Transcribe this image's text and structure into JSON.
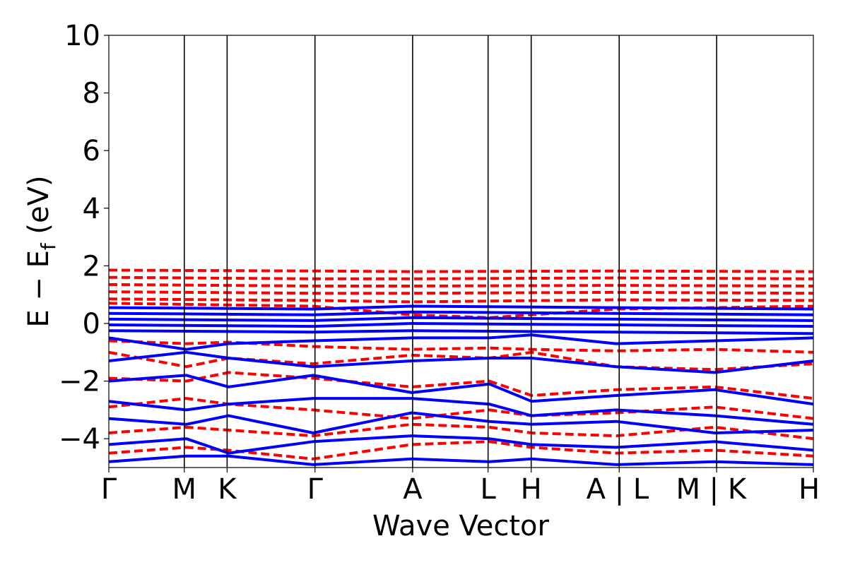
{
  "chart_data": {
    "type": "line",
    "xlabel": "Wave Vector",
    "ylabel_main": "E − E",
    "ylabel_sub": "f",
    "ylabel_unit": " (eV)",
    "ylim": [
      -5,
      10
    ],
    "yticks": [
      {
        "value": 10,
        "label": "10"
      },
      {
        "value": 8,
        "label": "8"
      },
      {
        "value": 6,
        "label": "6"
      },
      {
        "value": 4,
        "label": "4"
      },
      {
        "value": 2,
        "label": "2"
      },
      {
        "value": 0,
        "label": "0"
      },
      {
        "value": -2,
        "label": "−2"
      },
      {
        "value": -4,
        "label": "−4"
      }
    ],
    "xlim": [
      0,
      1
    ],
    "kpoints": [
      {
        "position": 0.0,
        "label": "Γ"
      },
      {
        "position": 0.1071,
        "label": "M"
      },
      {
        "position": 0.1679,
        "label": "K"
      },
      {
        "position": 0.2926,
        "label": "Γ"
      },
      {
        "position": 0.4312,
        "label": "A"
      },
      {
        "position": 0.5383,
        "label": "L"
      },
      {
        "position": 0.5995,
        "label": "H"
      },
      {
        "position": 0.7244,
        "label": "A | L"
      },
      {
        "position": 0.8627,
        "label": "M | K"
      },
      {
        "position": 1.0,
        "label": "H"
      }
    ],
    "grid": false,
    "series": [
      {
        "style": "dashed",
        "color": "#ff0000",
        "bands": [
          {
            "x": [
              0,
              0.29,
              0.43,
              0.72,
              1
            ],
            "y": [
              1.85,
              1.82,
              1.8,
              1.82,
              1.8
            ]
          },
          {
            "x": [
              0,
              0.29,
              0.43,
              0.72,
              1
            ],
            "y": [
              1.6,
              1.55,
              1.55,
              1.58,
              1.55
            ]
          },
          {
            "x": [
              0,
              0.29,
              0.43,
              0.72,
              1
            ],
            "y": [
              1.35,
              1.3,
              1.3,
              1.32,
              1.3
            ]
          },
          {
            "x": [
              0,
              0.29,
              0.43,
              0.72,
              1
            ],
            "y": [
              1.1,
              1.05,
              1.05,
              1.08,
              1.05
            ]
          },
          {
            "x": [
              0,
              0.29,
              0.43,
              0.72,
              1
            ],
            "y": [
              0.85,
              0.8,
              0.75,
              0.82,
              0.8
            ]
          },
          {
            "x": [
              0,
              0.29,
              0.43,
              0.54,
              0.72,
              1
            ],
            "y": [
              0.7,
              0.6,
              0.3,
              0.2,
              0.5,
              0.6
            ]
          },
          {
            "x": [
              0,
              0.11,
              0.17,
              0.29,
              0.43,
              0.54,
              0.6,
              0.72,
              0.86,
              1
            ],
            "y": [
              -0.6,
              -0.7,
              -0.65,
              -0.8,
              -0.9,
              -0.85,
              -0.9,
              -0.95,
              -0.9,
              -1.0
            ]
          },
          {
            "x": [
              0,
              0.11,
              0.17,
              0.29,
              0.43,
              0.54,
              0.6,
              0.72,
              0.86,
              1
            ],
            "y": [
              -1.0,
              -1.5,
              -1.2,
              -1.4,
              -1.1,
              -1.2,
              -1.0,
              -1.5,
              -1.6,
              -1.4
            ]
          },
          {
            "x": [
              0,
              0.11,
              0.17,
              0.29,
              0.43,
              0.54,
              0.6,
              0.72,
              0.86,
              1
            ],
            "y": [
              -1.9,
              -2.0,
              -1.7,
              -1.9,
              -2.2,
              -2.0,
              -2.5,
              -2.3,
              -2.2,
              -2.6
            ]
          },
          {
            "x": [
              0,
              0.11,
              0.17,
              0.29,
              0.43,
              0.54,
              0.6,
              0.72,
              0.86,
              1
            ],
            "y": [
              -2.9,
              -2.6,
              -2.8,
              -3.0,
              -3.3,
              -3.0,
              -3.2,
              -3.1,
              -2.9,
              -3.3
            ]
          },
          {
            "x": [
              0,
              0.11,
              0.17,
              0.29,
              0.43,
              0.54,
              0.6,
              0.72,
              0.86,
              1
            ],
            "y": [
              -3.8,
              -3.6,
              -3.7,
              -3.9,
              -3.5,
              -3.6,
              -3.8,
              -3.9,
              -3.6,
              -4.0
            ]
          },
          {
            "x": [
              0,
              0.11,
              0.17,
              0.29,
              0.43,
              0.54,
              0.6,
              0.72,
              0.86,
              1
            ],
            "y": [
              -4.5,
              -4.3,
              -4.4,
              -4.7,
              -4.2,
              -4.1,
              -4.3,
              -4.5,
              -4.4,
              -4.6
            ]
          }
        ]
      },
      {
        "style": "solid",
        "color": "#0000ff",
        "bands": [
          {
            "x": [
              0,
              0.29,
              0.43,
              0.72,
              1
            ],
            "y": [
              0.55,
              0.5,
              0.6,
              0.55,
              0.5
            ]
          },
          {
            "x": [
              0,
              0.29,
              0.43,
              0.72,
              1
            ],
            "y": [
              0.35,
              0.3,
              0.4,
              0.35,
              0.3
            ]
          },
          {
            "x": [
              0,
              0.29,
              0.43,
              0.72,
              1
            ],
            "y": [
              0.15,
              0.1,
              0.2,
              0.15,
              0.1
            ]
          },
          {
            "x": [
              0,
              0.29,
              0.43,
              0.72,
              1
            ],
            "y": [
              -0.05,
              -0.1,
              0.0,
              -0.05,
              -0.1
            ]
          },
          {
            "x": [
              0,
              0.29,
              0.43,
              0.72,
              1
            ],
            "y": [
              -0.25,
              -0.3,
              -0.25,
              -0.3,
              -0.35
            ]
          },
          {
            "x": [
              0,
              0.11,
              0.17,
              0.29,
              0.43,
              0.54,
              0.6,
              0.72,
              0.86,
              1
            ],
            "y": [
              -0.5,
              -0.9,
              -0.7,
              -0.6,
              -0.5,
              -0.5,
              -0.4,
              -0.7,
              -0.6,
              -0.5
            ]
          },
          {
            "x": [
              0,
              0.11,
              0.17,
              0.29,
              0.43,
              0.54,
              0.6,
              0.72,
              0.86,
              1
            ],
            "y": [
              -1.3,
              -1.0,
              -1.2,
              -1.5,
              -1.3,
              -1.2,
              -1.2,
              -1.5,
              -1.7,
              -1.3
            ]
          },
          {
            "x": [
              0,
              0.11,
              0.17,
              0.29,
              0.43,
              0.54,
              0.6,
              0.72,
              0.86,
              1
            ],
            "y": [
              -2.0,
              -1.8,
              -2.2,
              -1.8,
              -2.4,
              -2.1,
              -2.7,
              -2.5,
              -2.3,
              -2.8
            ]
          },
          {
            "x": [
              0,
              0.11,
              0.17,
              0.29,
              0.43,
              0.54,
              0.6,
              0.72,
              0.86,
              1
            ],
            "y": [
              -2.7,
              -3.0,
              -2.8,
              -2.6,
              -2.6,
              -2.8,
              -3.2,
              -3.0,
              -3.2,
              -3.5
            ]
          },
          {
            "x": [
              0,
              0.11,
              0.17,
              0.29,
              0.43,
              0.54,
              0.6,
              0.72,
              0.86,
              1
            ],
            "y": [
              -3.3,
              -3.5,
              -3.2,
              -3.8,
              -3.1,
              -3.4,
              -3.5,
              -3.4,
              -3.8,
              -3.7
            ]
          },
          {
            "x": [
              0,
              0.11,
              0.17,
              0.29,
              0.43,
              0.54,
              0.6,
              0.72,
              0.86,
              1
            ],
            "y": [
              -4.2,
              -4.0,
              -4.5,
              -4.1,
              -3.9,
              -4.0,
              -4.2,
              -4.3,
              -4.1,
              -4.4
            ]
          },
          {
            "x": [
              0,
              0.11,
              0.17,
              0.29,
              0.43,
              0.54,
              0.6,
              0.72,
              0.86,
              1
            ],
            "y": [
              -4.8,
              -4.6,
              -4.6,
              -4.9,
              -4.7,
              -4.8,
              -4.7,
              -4.9,
              -4.8,
              -4.9
            ]
          }
        ]
      }
    ]
  }
}
